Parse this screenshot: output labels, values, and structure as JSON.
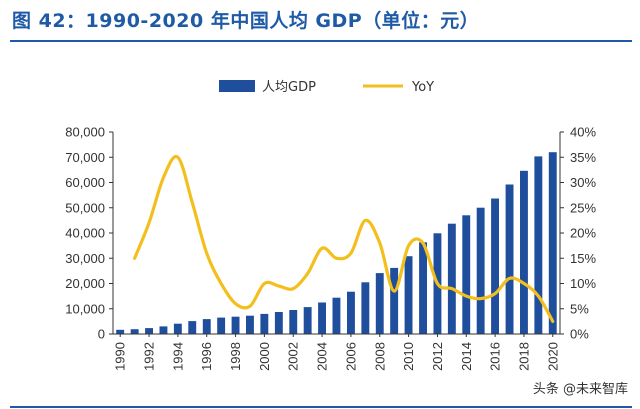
{
  "figure_title": "图 42：1990-2020 年中国人均 GDP（单位：元）",
  "watermark": "头条 @未来智库",
  "colors": {
    "bar": "#1f4e9c",
    "line": "#f2bf1d",
    "title": "#1f5aa6"
  },
  "chart_data": {
    "type": "bar+line",
    "title": "",
    "x": [
      1990,
      1991,
      1992,
      1993,
      1994,
      1995,
      1996,
      1997,
      1998,
      1999,
      2000,
      2001,
      2002,
      2003,
      2004,
      2005,
      2006,
      2007,
      2008,
      2009,
      2010,
      2011,
      2012,
      2013,
      2014,
      2015,
      2016,
      2017,
      2018,
      2019,
      2020
    ],
    "x_tick_labels": [
      "1990",
      "1992",
      "1994",
      "1996",
      "1998",
      "2000",
      "2002",
      "2004",
      "2006",
      "2008",
      "2010",
      "2012",
      "2014",
      "2016",
      "2018",
      "2020"
    ],
    "series": [
      {
        "name": "人均GDP",
        "type": "bar",
        "axis": "left",
        "values": [
          1663,
          1912,
          2334,
          3027,
          4081,
          5091,
          5898,
          6481,
          6860,
          7229,
          7942,
          8717,
          9506,
          10666,
          12487,
          14368,
          16738,
          20494,
          24100,
          26180,
          30808,
          36302,
          39874,
          43684,
          47005,
          50028,
          53680,
          59201,
          64644,
          70328,
          72000
        ]
      },
      {
        "name": "YoY",
        "type": "line",
        "axis": "right",
        "values": [
          null,
          15.0,
          22.0,
          31.0,
          35.0,
          26.0,
          16.0,
          10.0,
          6.0,
          5.5,
          10.0,
          9.5,
          9.0,
          12.0,
          17.0,
          15.0,
          16.0,
          22.5,
          18.0,
          8.5,
          17.5,
          18.0,
          10.0,
          9.0,
          7.5,
          7.0,
          8.0,
          11.0,
          10.0,
          7.5,
          2.5
        ]
      }
    ],
    "y_left": {
      "min": 0,
      "max": 80000,
      "ticks": [
        "0",
        "10,000",
        "20,000",
        "30,000",
        "40,000",
        "50,000",
        "60,000",
        "70,000",
        "80,000"
      ]
    },
    "y_right": {
      "min": 0,
      "max": 40,
      "ticks": [
        "0%",
        "5%",
        "10%",
        "15%",
        "20%",
        "25%",
        "30%",
        "35%",
        "40%"
      ]
    },
    "legend": {
      "position": "top-center",
      "items": [
        "人均GDP",
        "YoY"
      ]
    },
    "grid": false
  }
}
